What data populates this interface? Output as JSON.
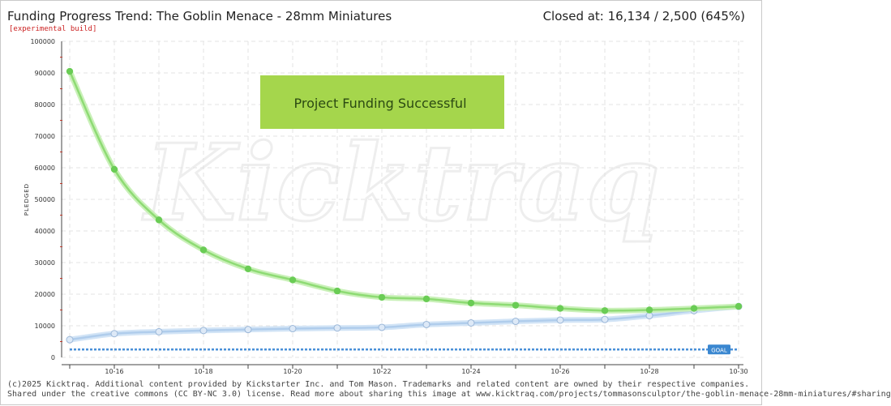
{
  "header": {
    "title": "Funding Progress Trend: The Goblin Menace - 28mm Miniatures",
    "subtitle": "[experimental build]",
    "closed_text": "Closed at:  16,134 /  2,500 (645%)"
  },
  "banner": {
    "text": "Project Funding Successful",
    "color": "#a5d64c"
  },
  "watermark": "Kicktraq",
  "footer": {
    "line1": "(c)2025 Kicktraq. Additional content provided by Kickstarter Inc. and Tom Mason. Trademarks and related content are owned by their respective companies.",
    "line2": "Shared under the creative commons (CC BY-NC 3.0) license. Read more about sharing this image at www.kicktraq.com/projects/tommasonsculptor/the-goblin-menace-28mm-miniatures/#sharing"
  },
  "chart_data": {
    "type": "line",
    "ylabel": "PLEDGED",
    "ylim": [
      0,
      100000
    ],
    "yticks": [
      0,
      10000,
      20000,
      30000,
      40000,
      50000,
      60000,
      70000,
      80000,
      90000,
      100000
    ],
    "x": [
      "10-15",
      "10-16",
      "10-17",
      "10-18",
      "10-19",
      "10-20",
      "10-21",
      "10-22",
      "10-23",
      "10-24",
      "10-25",
      "10-26",
      "10-27",
      "10-28",
      "10-29",
      "10-30"
    ],
    "xtick_labels": [
      "10-16",
      "10-18",
      "10-20",
      "10-22",
      "10-24",
      "10-26",
      "10-28",
      "10-30"
    ],
    "goal": 2500,
    "goal_label": "GOAL",
    "grid": true,
    "series": [
      {
        "values": [
          90500,
          59500,
          43500,
          34000,
          28000,
          24500,
          21000,
          19000,
          18500,
          17200,
          16500,
          15500,
          14800,
          15000,
          15500,
          16134
        ],
        "color": "#66cc55"
      },
      {
        "values": [
          5600,
          7500,
          8100,
          8500,
          8800,
          9100,
          9300,
          9500,
          10400,
          10900,
          11400,
          11800,
          12000,
          13200,
          14800,
          16134
        ],
        "color": "#aaccee"
      }
    ]
  },
  "colors": {
    "trend_line": "#66cc55",
    "pledged_line": "#aaccee",
    "goal_line": "#4a90d9",
    "grid": "#e3e3e3"
  }
}
